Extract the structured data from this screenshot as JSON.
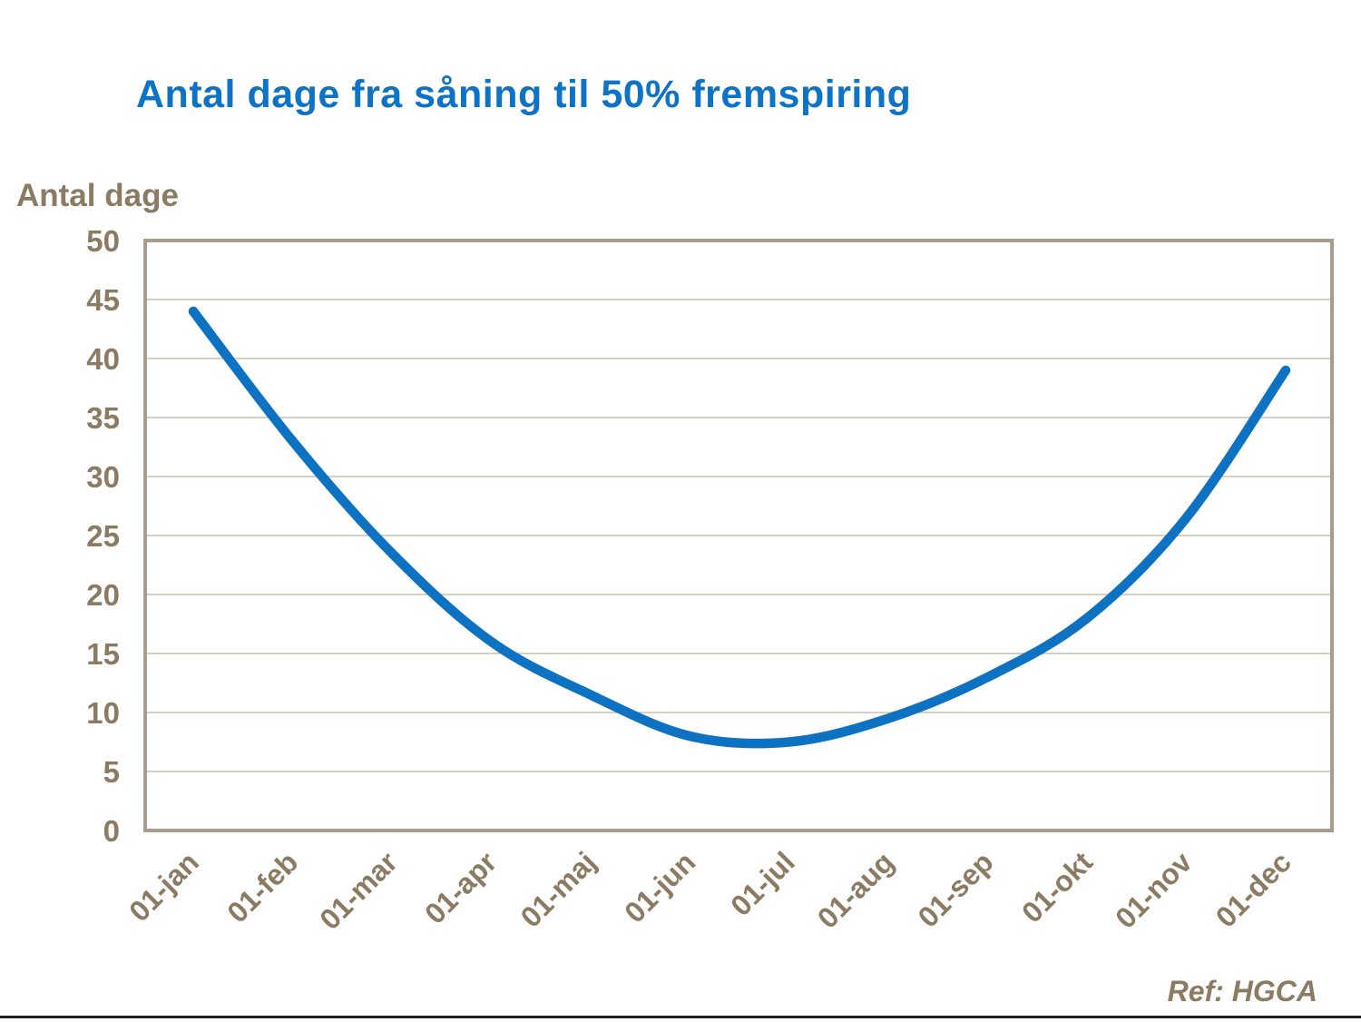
{
  "title": "Antal dage fra såning til 50% fremspiring",
  "y_axis_title": "Antal dage",
  "ref_label": "Ref: HGCA",
  "colors": {
    "title_blue": "#0d73c6",
    "curve_blue": "#0d72c2",
    "text_brown": "#8c7b63",
    "gridline": "#c9bfb1",
    "frame": "#a89d8d",
    "footer_bar": "#1c2030",
    "background": "#ffffff"
  },
  "chart_data": {
    "type": "line",
    "title": "Antal dage fra såning til 50% fremspiring",
    "categories": [
      "01-jan",
      "01-feb",
      "01-mar",
      "01-apr",
      "01-maj",
      "01-jun",
      "01-jul",
      "01-aug",
      "01-sep",
      "01-okt",
      "01-nov",
      "01-dec"
    ],
    "values": [
      44,
      33,
      23.5,
      16,
      11.5,
      8,
      7.5,
      9.5,
      13,
      18,
      26.5,
      39
    ],
    "series_name": "Antal dage fra såning til 50% fremspiring",
    "xlabel": "",
    "ylabel": "Antal dage",
    "ylim": [
      0,
      50
    ],
    "ytick_step": 5,
    "yticks": [
      0,
      5,
      10,
      15,
      20,
      25,
      30,
      35,
      40,
      45,
      50
    ],
    "grid": "horizontal",
    "legend": "none",
    "x_label_rotation_deg": -45,
    "annotation": "Ref: HGCA"
  }
}
